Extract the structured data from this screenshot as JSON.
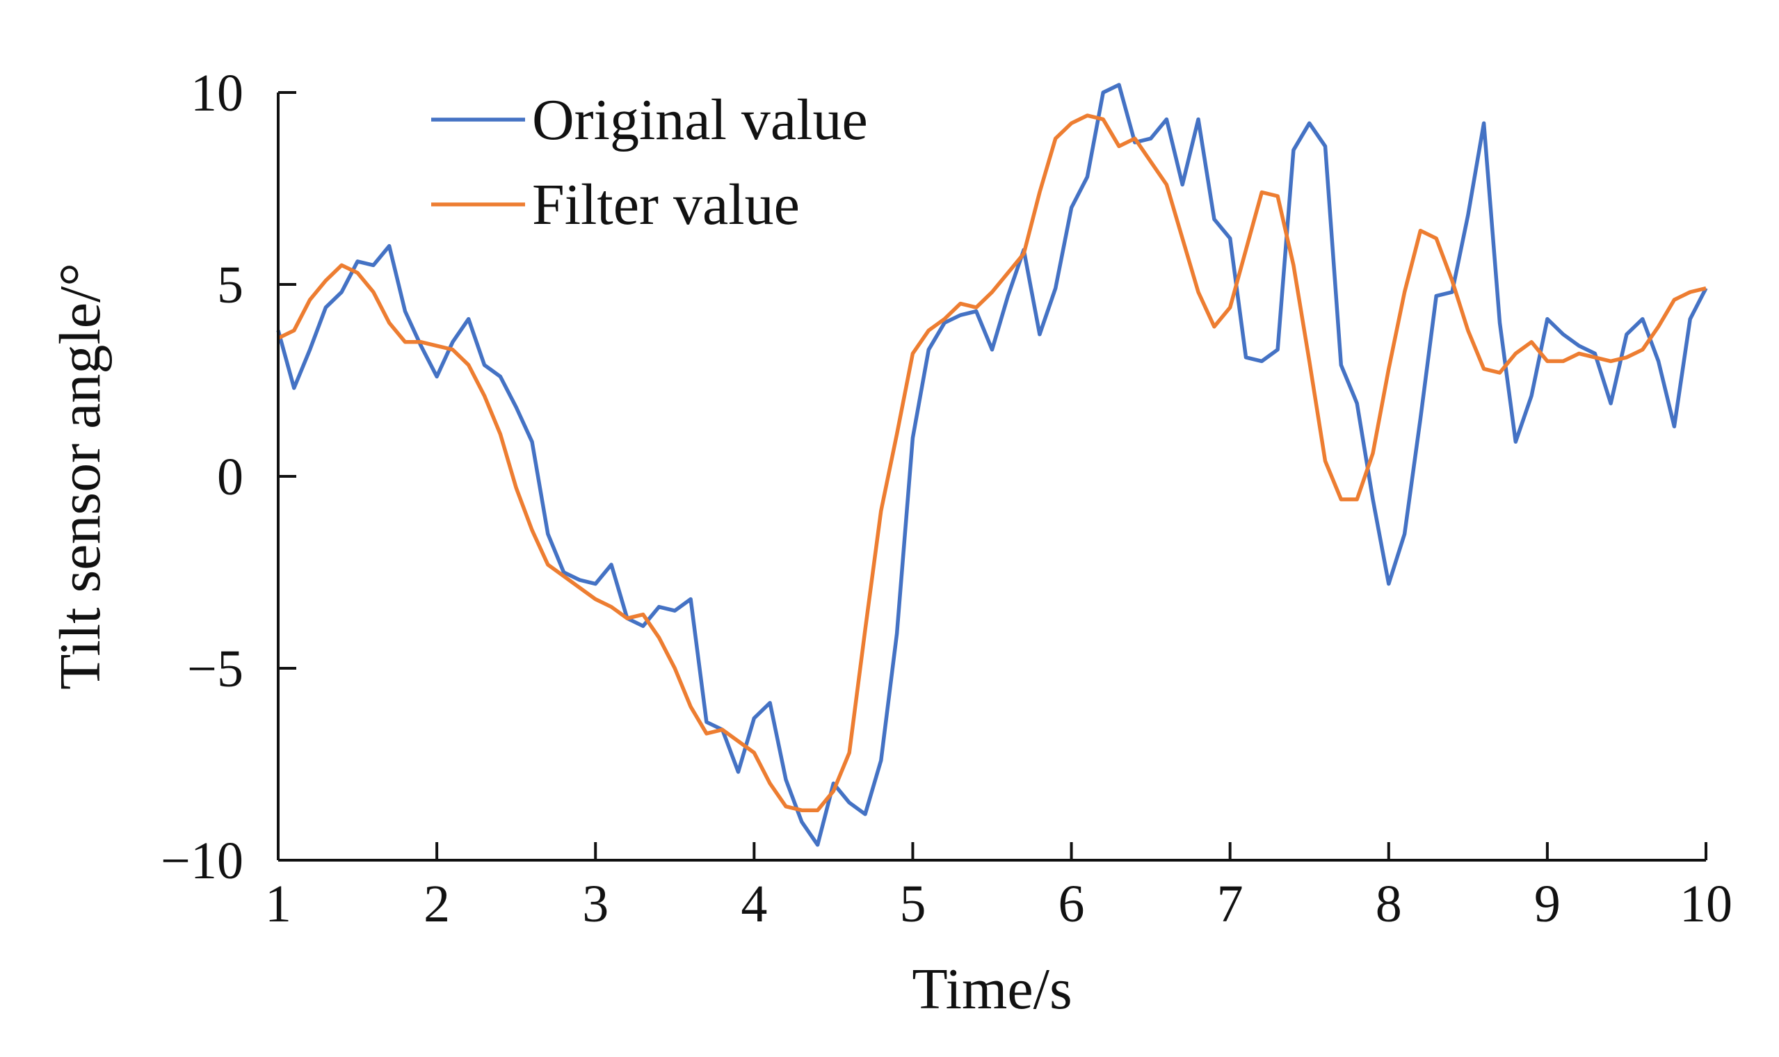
{
  "chart_data": {
    "type": "line",
    "title": "",
    "xlabel": "Time/s",
    "ylabel": "Tilt sensor angle/°",
    "xlim": [
      1,
      10
    ],
    "ylim": [
      -10,
      10
    ],
    "x_ticks": [
      1,
      2,
      3,
      4,
      5,
      6,
      7,
      8,
      9,
      10
    ],
    "x_tick_labels": [
      "1",
      "2",
      "3",
      "4",
      "5",
      "6",
      "7",
      "8",
      "9",
      "10"
    ],
    "y_ticks": [
      10,
      5,
      0,
      -5,
      -10
    ],
    "y_tick_labels": [
      "10",
      "5",
      "0",
      "−5",
      "−10"
    ],
    "grid": false,
    "legend_position": "top-left",
    "series": [
      {
        "name": "Original value",
        "color": "#4472c4",
        "points": [
          [
            1.0,
            3.8
          ],
          [
            1.1,
            2.3
          ],
          [
            1.2,
            3.3
          ],
          [
            1.3,
            4.4
          ],
          [
            1.4,
            4.8
          ],
          [
            1.5,
            5.6
          ],
          [
            1.6,
            5.5
          ],
          [
            1.7,
            6.0
          ],
          [
            1.8,
            4.3
          ],
          [
            1.9,
            3.4
          ],
          [
            2.0,
            2.6
          ],
          [
            2.1,
            3.5
          ],
          [
            2.2,
            4.1
          ],
          [
            2.3,
            2.9
          ],
          [
            2.4,
            2.6
          ],
          [
            2.5,
            1.8
          ],
          [
            2.6,
            0.9
          ],
          [
            2.7,
            -1.5
          ],
          [
            2.8,
            -2.5
          ],
          [
            2.9,
            -2.7
          ],
          [
            3.0,
            -2.8
          ],
          [
            3.1,
            -2.3
          ],
          [
            3.2,
            -3.7
          ],
          [
            3.3,
            -3.9
          ],
          [
            3.4,
            -3.4
          ],
          [
            3.5,
            -3.5
          ],
          [
            3.6,
            -3.2
          ],
          [
            3.7,
            -6.4
          ],
          [
            3.8,
            -6.6
          ],
          [
            3.9,
            -7.7
          ],
          [
            4.0,
            -6.3
          ],
          [
            4.1,
            -5.9
          ],
          [
            4.2,
            -7.9
          ],
          [
            4.3,
            -9.0
          ],
          [
            4.4,
            -9.6
          ],
          [
            4.5,
            -8.0
          ],
          [
            4.6,
            -8.5
          ],
          [
            4.7,
            -8.8
          ],
          [
            4.8,
            -7.4
          ],
          [
            4.9,
            -4.1
          ],
          [
            5.0,
            1.0
          ],
          [
            5.1,
            3.3
          ],
          [
            5.2,
            4.0
          ],
          [
            5.3,
            4.2
          ],
          [
            5.4,
            4.3
          ],
          [
            5.5,
            3.3
          ],
          [
            5.6,
            4.7
          ],
          [
            5.7,
            5.9
          ],
          [
            5.8,
            3.7
          ],
          [
            5.9,
            4.9
          ],
          [
            6.0,
            7.0
          ],
          [
            6.1,
            7.8
          ],
          [
            6.2,
            10.0
          ],
          [
            6.3,
            10.2
          ],
          [
            6.4,
            8.7
          ],
          [
            6.5,
            8.8
          ],
          [
            6.6,
            9.3
          ],
          [
            6.7,
            7.6
          ],
          [
            6.8,
            9.3
          ],
          [
            6.9,
            6.7
          ],
          [
            7.0,
            6.2
          ],
          [
            7.1,
            3.1
          ],
          [
            7.2,
            3.0
          ],
          [
            7.3,
            3.3
          ],
          [
            7.4,
            8.5
          ],
          [
            7.5,
            9.2
          ],
          [
            7.6,
            8.6
          ],
          [
            7.7,
            2.9
          ],
          [
            7.8,
            1.9
          ],
          [
            7.9,
            -0.6
          ],
          [
            8.0,
            -2.8
          ],
          [
            8.1,
            -1.5
          ],
          [
            8.2,
            1.5
          ],
          [
            8.3,
            4.7
          ],
          [
            8.4,
            4.8
          ],
          [
            8.5,
            6.8
          ],
          [
            8.6,
            9.2
          ],
          [
            8.7,
            4.0
          ],
          [
            8.8,
            0.9
          ],
          [
            8.9,
            2.1
          ],
          [
            9.0,
            4.1
          ],
          [
            9.1,
            3.7
          ],
          [
            9.2,
            3.4
          ],
          [
            9.3,
            3.2
          ],
          [
            9.4,
            1.9
          ],
          [
            9.5,
            3.7
          ],
          [
            9.6,
            4.1
          ],
          [
            9.7,
            3.0
          ],
          [
            9.8,
            1.3
          ],
          [
            9.9,
            4.1
          ],
          [
            10.0,
            4.9
          ]
        ]
      },
      {
        "name": "Filter value",
        "color": "#ed7d31",
        "points": [
          [
            1.0,
            3.6
          ],
          [
            1.1,
            3.8
          ],
          [
            1.2,
            4.6
          ],
          [
            1.3,
            5.1
          ],
          [
            1.4,
            5.5
          ],
          [
            1.5,
            5.3
          ],
          [
            1.6,
            4.8
          ],
          [
            1.7,
            4.0
          ],
          [
            1.8,
            3.5
          ],
          [
            1.9,
            3.5
          ],
          [
            2.0,
            3.4
          ],
          [
            2.1,
            3.3
          ],
          [
            2.2,
            2.9
          ],
          [
            2.3,
            2.1
          ],
          [
            2.4,
            1.1
          ],
          [
            2.5,
            -0.3
          ],
          [
            2.6,
            -1.4
          ],
          [
            2.7,
            -2.3
          ],
          [
            2.8,
            -2.6
          ],
          [
            2.9,
            -2.9
          ],
          [
            3.0,
            -3.2
          ],
          [
            3.1,
            -3.4
          ],
          [
            3.2,
            -3.7
          ],
          [
            3.3,
            -3.6
          ],
          [
            3.4,
            -4.2
          ],
          [
            3.5,
            -5.0
          ],
          [
            3.6,
            -6.0
          ],
          [
            3.7,
            -6.7
          ],
          [
            3.8,
            -6.6
          ],
          [
            3.9,
            -6.9
          ],
          [
            4.0,
            -7.2
          ],
          [
            4.1,
            -8.0
          ],
          [
            4.2,
            -8.6
          ],
          [
            4.3,
            -8.7
          ],
          [
            4.4,
            -8.7
          ],
          [
            4.5,
            -8.2
          ],
          [
            4.6,
            -7.2
          ],
          [
            4.7,
            -4.0
          ],
          [
            4.8,
            -0.9
          ],
          [
            4.9,
            1.1
          ],
          [
            5.0,
            3.2
          ],
          [
            5.1,
            3.8
          ],
          [
            5.2,
            4.1
          ],
          [
            5.3,
            4.5
          ],
          [
            5.4,
            4.4
          ],
          [
            5.5,
            4.8
          ],
          [
            5.6,
            5.3
          ],
          [
            5.7,
            5.8
          ],
          [
            5.8,
            7.4
          ],
          [
            5.9,
            8.8
          ],
          [
            6.0,
            9.2
          ],
          [
            6.1,
            9.4
          ],
          [
            6.2,
            9.3
          ],
          [
            6.3,
            8.6
          ],
          [
            6.4,
            8.8
          ],
          [
            6.5,
            8.2
          ],
          [
            6.6,
            7.6
          ],
          [
            6.7,
            6.2
          ],
          [
            6.8,
            4.8
          ],
          [
            6.9,
            3.9
          ],
          [
            7.0,
            4.4
          ],
          [
            7.1,
            5.9
          ],
          [
            7.2,
            7.4
          ],
          [
            7.3,
            7.3
          ],
          [
            7.4,
            5.5
          ],
          [
            7.5,
            3.0
          ],
          [
            7.6,
            0.4
          ],
          [
            7.7,
            -0.6
          ],
          [
            7.8,
            -0.6
          ],
          [
            7.9,
            0.6
          ],
          [
            8.0,
            2.8
          ],
          [
            8.1,
            4.8
          ],
          [
            8.2,
            6.4
          ],
          [
            8.3,
            6.2
          ],
          [
            8.4,
            5.1
          ],
          [
            8.5,
            3.8
          ],
          [
            8.6,
            2.8
          ],
          [
            8.7,
            2.7
          ],
          [
            8.8,
            3.2
          ],
          [
            8.9,
            3.5
          ],
          [
            9.0,
            3.0
          ],
          [
            9.1,
            3.0
          ],
          [
            9.2,
            3.2
          ],
          [
            9.3,
            3.1
          ],
          [
            9.4,
            3.0
          ],
          [
            9.5,
            3.1
          ],
          [
            9.6,
            3.3
          ],
          [
            9.7,
            3.9
          ],
          [
            9.8,
            4.6
          ],
          [
            9.9,
            4.8
          ],
          [
            10.0,
            4.9
          ]
        ]
      }
    ]
  }
}
